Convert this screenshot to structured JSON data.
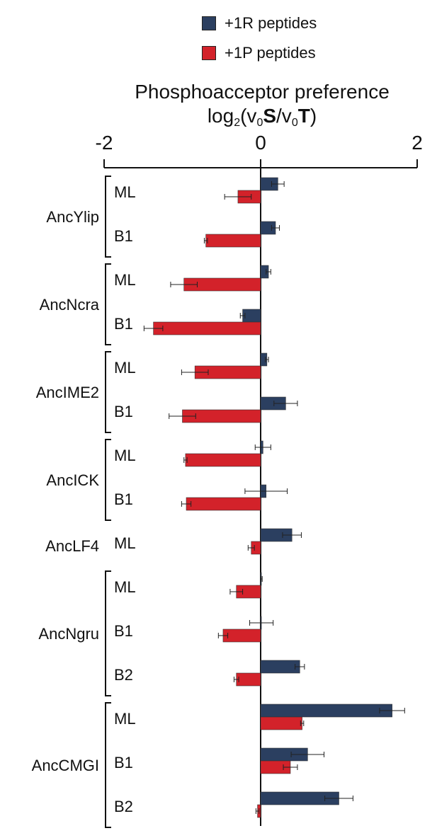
{
  "chart_data": {
    "type": "bar",
    "orientation": "horizontal",
    "title": "Phosphoacceptor preference",
    "axis_label": {
      "prefix": "log",
      "base": "2",
      "open": "(v",
      "sub1": "0",
      "bold1": "S",
      "slash": "/v",
      "sub2": "0",
      "bold2": "T",
      "close": ")"
    },
    "xlim": [
      -2,
      2
    ],
    "xticks": [
      -2,
      0,
      2
    ],
    "xtick_labels": [
      "-2",
      "0",
      "2"
    ],
    "legend_placement": "top",
    "series": [
      {
        "name": "+1R peptides",
        "color": "#2b3f60"
      },
      {
        "name": "+1P peptides",
        "color": "#d3222a"
      }
    ],
    "groups": [
      {
        "name": "AncYlip",
        "bracket": true,
        "rows": [
          {
            "label": "ML",
            "r": 0.22,
            "r_err": 0.08,
            "p": -0.29,
            "p_err": 0.17
          },
          {
            "label": "B1",
            "r": 0.19,
            "r_err": 0.05,
            "p": -0.7,
            "p_err": 0.02
          }
        ]
      },
      {
        "name": "AncNcra",
        "bracket": true,
        "rows": [
          {
            "label": "ML",
            "r": 0.1,
            "r_err": 0.03,
            "p": -0.98,
            "p_err": 0.17
          },
          {
            "label": "B1",
            "r": -0.23,
            "r_err": 0.03,
            "p": -1.37,
            "p_err": 0.12
          }
        ]
      },
      {
        "name": "AncIME2",
        "bracket": true,
        "rows": [
          {
            "label": "ML",
            "r": 0.08,
            "r_err": 0.02,
            "p": -0.84,
            "p_err": 0.17
          },
          {
            "label": "B1",
            "r": 0.32,
            "r_err": 0.15,
            "p": -1.0,
            "p_err": 0.17
          }
        ]
      },
      {
        "name": "AncICK",
        "bracket": true,
        "rows": [
          {
            "label": "ML",
            "r": 0.03,
            "r_err": 0.1,
            "p": -0.96,
            "p_err": 0.02
          },
          {
            "label": "B1",
            "r": 0.07,
            "r_err": 0.27,
            "p": -0.95,
            "p_err": 0.06
          }
        ]
      },
      {
        "name": "AncLF4",
        "bracket": false,
        "rows": [
          {
            "label": "ML",
            "r": 0.4,
            "r_err": 0.12,
            "p": -0.12,
            "p_err": 0.04
          }
        ]
      },
      {
        "name": "AncNgru",
        "bracket": true,
        "rows": [
          {
            "label": "ML",
            "r": 0.01,
            "r_err": 0.01,
            "p": -0.31,
            "p_err": 0.08
          },
          {
            "label": "B1",
            "r": 0.01,
            "r_err": 0.15,
            "p": -0.48,
            "p_err": 0.06
          },
          {
            "label": "B2",
            "r": 0.5,
            "r_err": 0.06,
            "p": -0.31,
            "p_err": 0.03
          }
        ]
      },
      {
        "name": "AncCMGI",
        "bracket": true,
        "rows": [
          {
            "label": "ML",
            "r": 1.68,
            "r_err": 0.16,
            "p": 0.53,
            "p_err": 0.02
          },
          {
            "label": "B1",
            "r": 0.6,
            "r_err": 0.21,
            "p": 0.38,
            "p_err": 0.09
          },
          {
            "label": "B2",
            "r": 1.0,
            "r_err": 0.18,
            "p": -0.04,
            "p_err": 0.02
          }
        ]
      }
    ]
  }
}
